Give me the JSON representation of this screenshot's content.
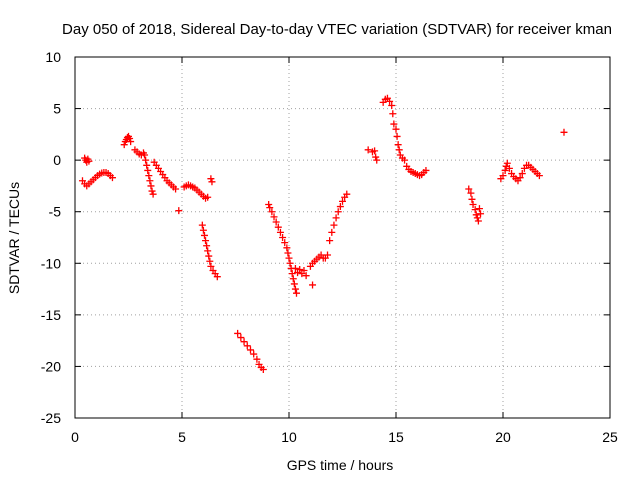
{
  "chart_data": {
    "type": "scatter",
    "title": "Day 050 of 2018, Sidereal Day-to-day VTEC variation (SDTVAR) for receiver kman",
    "xlabel": "GPS time / hours",
    "ylabel": "SDTVAR / TECUs",
    "xlim": [
      0,
      25
    ],
    "ylim": [
      -25,
      10
    ],
    "xticks": [
      "0",
      "5",
      "10",
      "15",
      "20",
      "25"
    ],
    "yticks": [
      "10",
      "5",
      "0",
      "-5",
      "-10",
      "-15",
      "-20",
      "-25"
    ],
    "grid": true,
    "marker": "+",
    "series": [
      {
        "name": "SDTVAR",
        "color": "#ff0000",
        "points": [
          [
            0.35,
            -2.0
          ],
          [
            0.45,
            -2.3
          ],
          [
            0.55,
            -2.5
          ],
          [
            0.65,
            -2.3
          ],
          [
            0.75,
            -2.1
          ],
          [
            0.85,
            -1.9
          ],
          [
            0.95,
            -1.7
          ],
          [
            1.05,
            -1.5
          ],
          [
            1.15,
            -1.35
          ],
          [
            1.25,
            -1.25
          ],
          [
            1.35,
            -1.2
          ],
          [
            1.45,
            -1.2
          ],
          [
            1.55,
            -1.3
          ],
          [
            1.65,
            -1.5
          ],
          [
            1.75,
            -1.7
          ],
          [
            0.45,
            0.2
          ],
          [
            0.5,
            0.0
          ],
          [
            0.55,
            -0.2
          ],
          [
            0.6,
            0.1
          ],
          [
            0.65,
            -0.1
          ],
          [
            2.3,
            1.5
          ],
          [
            2.35,
            1.8
          ],
          [
            2.4,
            2.0
          ],
          [
            2.45,
            2.2
          ],
          [
            2.5,
            2.3
          ],
          [
            2.55,
            2.1
          ],
          [
            2.6,
            1.8
          ],
          [
            2.8,
            1.0
          ],
          [
            2.9,
            0.8
          ],
          [
            3.0,
            0.6
          ],
          [
            3.1,
            0.5
          ],
          [
            3.2,
            0.7
          ],
          [
            3.25,
            0.5
          ],
          [
            3.3,
            0.0
          ],
          [
            3.35,
            -0.5
          ],
          [
            3.4,
            -1.0
          ],
          [
            3.45,
            -1.5
          ],
          [
            3.5,
            -2.0
          ],
          [
            3.55,
            -2.5
          ],
          [
            3.6,
            -3.0
          ],
          [
            3.65,
            -3.3
          ],
          [
            3.7,
            -0.2
          ],
          [
            3.8,
            -0.5
          ],
          [
            3.9,
            -0.8
          ],
          [
            4.0,
            -1.1
          ],
          [
            4.1,
            -1.4
          ],
          [
            4.2,
            -1.7
          ],
          [
            4.3,
            -2.0
          ],
          [
            4.4,
            -2.2
          ],
          [
            4.5,
            -2.4
          ],
          [
            4.6,
            -2.6
          ],
          [
            4.7,
            -2.8
          ],
          [
            4.85,
            -4.9
          ],
          [
            5.1,
            -2.6
          ],
          [
            5.2,
            -2.5
          ],
          [
            5.3,
            -2.4
          ],
          [
            5.4,
            -2.5
          ],
          [
            5.5,
            -2.6
          ],
          [
            5.6,
            -2.7
          ],
          [
            5.7,
            -2.9
          ],
          [
            5.8,
            -3.1
          ],
          [
            5.9,
            -3.3
          ],
          [
            6.0,
            -3.5
          ],
          [
            6.1,
            -3.7
          ],
          [
            6.2,
            -3.6
          ],
          [
            6.35,
            -1.8
          ],
          [
            6.4,
            -2.1
          ],
          [
            5.95,
            -6.3
          ],
          [
            6.0,
            -6.8
          ],
          [
            6.05,
            -7.3
          ],
          [
            6.1,
            -7.8
          ],
          [
            6.15,
            -8.3
          ],
          [
            6.2,
            -8.8
          ],
          [
            6.25,
            -9.3
          ],
          [
            6.3,
            -9.8
          ],
          [
            6.35,
            -10.3
          ],
          [
            6.45,
            -10.7
          ],
          [
            6.55,
            -11.0
          ],
          [
            6.65,
            -11.3
          ],
          [
            7.6,
            -16.8
          ],
          [
            7.75,
            -17.2
          ],
          [
            7.9,
            -17.6
          ],
          [
            8.05,
            -18.0
          ],
          [
            8.2,
            -18.4
          ],
          [
            8.35,
            -18.8
          ],
          [
            8.5,
            -19.3
          ],
          [
            8.6,
            -19.8
          ],
          [
            8.7,
            -20.1
          ],
          [
            8.8,
            -20.3
          ],
          [
            9.05,
            -4.3
          ],
          [
            9.1,
            -4.6
          ],
          [
            9.2,
            -5.0
          ],
          [
            9.3,
            -5.5
          ],
          [
            9.4,
            -6.0
          ],
          [
            9.5,
            -6.5
          ],
          [
            9.6,
            -7.0
          ],
          [
            9.7,
            -7.5
          ],
          [
            9.8,
            -8.0
          ],
          [
            9.9,
            -8.5
          ],
          [
            9.95,
            -9.0
          ],
          [
            10.0,
            -9.5
          ],
          [
            10.05,
            -10.0
          ],
          [
            10.1,
            -10.5
          ],
          [
            10.15,
            -11.0
          ],
          [
            10.2,
            -11.5
          ],
          [
            10.25,
            -12.0
          ],
          [
            10.3,
            -12.5
          ],
          [
            10.35,
            -12.9
          ],
          [
            10.3,
            -10.5
          ],
          [
            10.4,
            -10.9
          ],
          [
            10.5,
            -10.6
          ],
          [
            10.6,
            -11.0
          ],
          [
            10.7,
            -10.7
          ],
          [
            10.8,
            -11.2
          ],
          [
            11.1,
            -12.1
          ],
          [
            11.0,
            -10.3
          ],
          [
            11.1,
            -10.0
          ],
          [
            11.2,
            -9.8
          ],
          [
            11.3,
            -9.6
          ],
          [
            11.4,
            -9.4
          ],
          [
            11.5,
            -9.2
          ],
          [
            11.6,
            -9.5
          ],
          [
            11.7,
            -9.5
          ],
          [
            11.8,
            -9.2
          ],
          [
            11.9,
            -7.8
          ],
          [
            12.0,
            -7.0
          ],
          [
            12.1,
            -6.3
          ],
          [
            12.2,
            -5.6
          ],
          [
            12.3,
            -5.0
          ],
          [
            12.4,
            -4.5
          ],
          [
            12.5,
            -4.0
          ],
          [
            12.6,
            -3.6
          ],
          [
            12.7,
            -3.3
          ],
          [
            13.7,
            1.0
          ],
          [
            13.9,
            0.8
          ],
          [
            14.0,
            0.9
          ],
          [
            14.05,
            0.3
          ],
          [
            14.1,
            0.0
          ],
          [
            14.4,
            5.6
          ],
          [
            14.5,
            5.9
          ],
          [
            14.6,
            6.0
          ],
          [
            14.7,
            5.7
          ],
          [
            14.8,
            5.3
          ],
          [
            14.85,
            4.5
          ],
          [
            14.9,
            3.5
          ],
          [
            15.0,
            3.0
          ],
          [
            15.05,
            2.3
          ],
          [
            15.1,
            1.5
          ],
          [
            15.15,
            1.0
          ],
          [
            15.2,
            0.5
          ],
          [
            15.3,
            0.2
          ],
          [
            15.4,
            0.0
          ],
          [
            15.5,
            -0.6
          ],
          [
            15.6,
            -0.9
          ],
          [
            15.7,
            -1.1
          ],
          [
            15.8,
            -1.2
          ],
          [
            15.9,
            -1.3
          ],
          [
            16.0,
            -1.4
          ],
          [
            16.1,
            -1.5
          ],
          [
            16.2,
            -1.4
          ],
          [
            16.3,
            -1.2
          ],
          [
            16.4,
            -1.0
          ],
          [
            18.4,
            -2.8
          ],
          [
            18.5,
            -3.2
          ],
          [
            18.55,
            -3.8
          ],
          [
            18.6,
            -4.3
          ],
          [
            18.7,
            -4.8
          ],
          [
            18.75,
            -5.3
          ],
          [
            18.8,
            -5.6
          ],
          [
            18.85,
            -5.9
          ],
          [
            18.9,
            -4.7
          ],
          [
            18.95,
            -5.2
          ],
          [
            19.9,
            -1.8
          ],
          [
            20.0,
            -1.5
          ],
          [
            20.1,
            -1.0
          ],
          [
            20.15,
            -0.6
          ],
          [
            20.2,
            -0.3
          ],
          [
            20.3,
            -0.8
          ],
          [
            20.4,
            -1.3
          ],
          [
            20.5,
            -1.6
          ],
          [
            20.6,
            -1.8
          ],
          [
            20.7,
            -2.0
          ],
          [
            20.8,
            -1.7
          ],
          [
            20.9,
            -1.3
          ],
          [
            21.0,
            -0.8
          ],
          [
            21.1,
            -0.5
          ],
          [
            21.2,
            -0.5
          ],
          [
            21.3,
            -0.7
          ],
          [
            21.4,
            -0.9
          ],
          [
            21.5,
            -1.1
          ],
          [
            21.6,
            -1.3
          ],
          [
            21.7,
            -1.5
          ],
          [
            22.85,
            2.7
          ]
        ]
      }
    ]
  }
}
